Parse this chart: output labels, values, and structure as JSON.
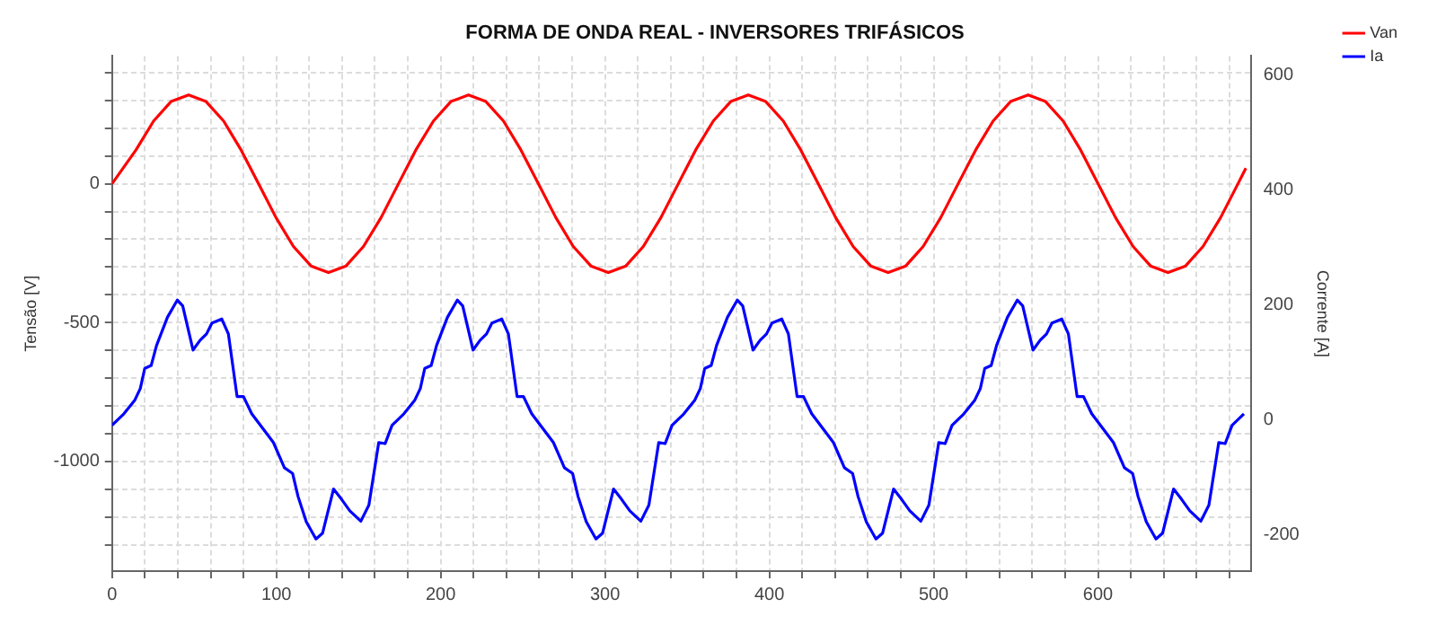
{
  "chart_data": {
    "type": "line",
    "title": "FORMA DE ONDA REAL - INVERSORES TRIFÁSICOS",
    "ylabel": "Tensão [V]",
    "y2label": "Corrente [A]",
    "xlim": [
      0,
      693
    ],
    "xticks": [
      0,
      {
        "value": 20,
        "label": null
      },
      {
        "value": 40,
        "label": null
      },
      {
        "value": 60,
        "label": null
      },
      {
        "value": 80,
        "label": null
      },
      100,
      {
        "value": 120,
        "label": null
      },
      {
        "value": 140,
        "label": null
      },
      {
        "value": 160,
        "label": null
      },
      {
        "value": 180,
        "label": null
      },
      200,
      {
        "value": 220,
        "label": null
      },
      {
        "value": 240,
        "label": null
      },
      {
        "value": 260,
        "label": null
      },
      {
        "value": 280,
        "label": null
      },
      300,
      {
        "value": 320,
        "label": null
      },
      {
        "value": 340,
        "label": null
      },
      {
        "value": 360,
        "label": null
      },
      {
        "value": 380,
        "label": null
      },
      400,
      {
        "value": 420,
        "label": null
      },
      {
        "value": 440,
        "label": null
      },
      {
        "value": 460,
        "label": null
      },
      {
        "value": 480,
        "label": null
      },
      500,
      {
        "value": 520,
        "label": null
      },
      {
        "value": 540,
        "label": null
      },
      {
        "value": 560,
        "label": null
      },
      {
        "value": 580,
        "label": null
      },
      600,
      {
        "value": 620,
        "label": null
      },
      {
        "value": 640,
        "label": null
      },
      {
        "value": 660,
        "label": null
      },
      {
        "value": 680,
        "label": null
      }
    ],
    "ylim": [
      -1395,
      460
    ],
    "yticks": [
      {
        "value": -1300,
        "label": null
      },
      {
        "value": -1200,
        "label": null
      },
      {
        "value": -1100,
        "label": null
      },
      -1000,
      {
        "value": -900,
        "label": null
      },
      {
        "value": -800,
        "label": null
      },
      {
        "value": -700,
        "label": null
      },
      {
        "value": -600,
        "label": null
      },
      -500,
      {
        "value": -400,
        "label": null
      },
      {
        "value": -300,
        "label": null
      },
      {
        "value": -200,
        "label": null
      },
      {
        "value": -100,
        "label": null
      },
      0,
      {
        "value": 100,
        "label": null
      },
      {
        "value": 200,
        "label": null
      },
      {
        "value": 300,
        "label": null
      },
      {
        "value": 400,
        "label": null
      }
    ],
    "y2lim": [
      -264,
      633
    ],
    "y2ticks": [
      -200,
      0,
      200,
      400,
      600
    ],
    "grid": true,
    "legend": "top right",
    "marker": "none",
    "line_style": "solid",
    "series": [
      {
        "name": "Van",
        "color": "#ff0000",
        "type": "line",
        "x": [
          0,
          14.6,
          25.3,
          35.9,
          46.6,
          57.2,
          67.9,
          78.5,
          89.2,
          99.8,
          110.4,
          121.1,
          131.7,
          142.4,
          153,
          163.7,
          174.3,
          184.9,
          195.6,
          206.2,
          216.9,
          227.5,
          238.2,
          248.8,
          259.5,
          270.1,
          280.7,
          291.4,
          302,
          312.7,
          323.3,
          334,
          344.6,
          355.2,
          365.9,
          376.5,
          387.2,
          397.8,
          408.5,
          419.1,
          429.8,
          440.4,
          451,
          461.7,
          472.3,
          483,
          493.6,
          504.3,
          514.9,
          525.6,
          536.2,
          546.8,
          557.5,
          568.1,
          578.8,
          589.4,
          600.1,
          610.7,
          621.4,
          632,
          642.6,
          653.3,
          663.9,
          674.6,
          685.2,
          690
        ],
        "values": [
          0,
          122,
          226,
          296,
          320,
          296,
          226,
          122,
          0,
          -122,
          -226,
          -296,
          -320,
          -296,
          -226,
          -122,
          0,
          122,
          226,
          296,
          320,
          296,
          226,
          122,
          0,
          -122,
          -226,
          -296,
          -320,
          -296,
          -226,
          -122,
          0,
          122,
          226,
          296,
          320,
          296,
          226,
          122,
          0,
          -122,
          -226,
          -296,
          -320,
          -296,
          -226,
          -122,
          0,
          122,
          226,
          296,
          320,
          296,
          226,
          122,
          0,
          -122,
          -226,
          -296,
          -320,
          -296,
          -226,
          -122,
          0,
          56
        ]
      },
      {
        "name": "Ia",
        "color": "#0000ff",
        "type": "line",
        "axis": "y2",
        "x": [
          0,
          7.2,
          13.9,
          17.2,
          19.9,
          23.8,
          27.1,
          33.7,
          39.7,
          43,
          49.3,
          53.6,
          57.5,
          60.8,
          66.8,
          70.8,
          76.1,
          80,
          85,
          91.6,
          98.2,
          104.9,
          109.9,
          113.2,
          118.2,
          124.1,
          128.1,
          134.8,
          139.7,
          144.7,
          151.4,
          156.3,
          162.3,
          166.2,
          170.4,
          177.6,
          184.3,
          187.6,
          190.3,
          194.2,
          197.5,
          204.1,
          210.1,
          213.4,
          219.7,
          224,
          227.9,
          231.2,
          237.2,
          241.2,
          246.5,
          250.4,
          255.4,
          262,
          268.6,
          275.3,
          280.3,
          283.6,
          288.6,
          294.5,
          298.5,
          305.2,
          310.1,
          315.1,
          321.8,
          326.7,
          332.7,
          336.6,
          340.8,
          348,
          354.7,
          358,
          360.7,
          364.6,
          367.9,
          374.5,
          380.5,
          383.8,
          390.1,
          394.4,
          398.3,
          401.6,
          407.6,
          411.6,
          416.9,
          420.8,
          425.8,
          432.4,
          439,
          445.7,
          450.7,
          454,
          459,
          464.9,
          468.9,
          475.6,
          480.5,
          485.5,
          492.2,
          497.1,
          503.1,
          507,
          511.2,
          518.4,
          525.1,
          528.4,
          531.1,
          535,
          538.3,
          544.9,
          550.9,
          554.2,
          560.5,
          564.8,
          568.7,
          572,
          578,
          582,
          587.3,
          591.2,
          596.2,
          602.8,
          609.4,
          616.1,
          621.1,
          624.4,
          629.4,
          635.3,
          639.3,
          646,
          650.9,
          655.9,
          662.6,
          667.5,
          673.5,
          677.4,
          681.6,
          688.8
        ],
        "values": [
          -10,
          10,
          34,
          54,
          89,
          94,
          129,
          178,
          208,
          198,
          121,
          138,
          149,
          168,
          175,
          149,
          40,
          40,
          10,
          -15,
          -40,
          -84,
          -94,
          -134,
          -178,
          -208,
          -198,
          -121,
          -139,
          -159,
          -177,
          -149,
          -40,
          -42,
          -10,
          10,
          34,
          54,
          89,
          94,
          129,
          178,
          208,
          198,
          121,
          138,
          149,
          168,
          175,
          149,
          40,
          40,
          10,
          -15,
          -40,
          -84,
          -94,
          -134,
          -178,
          -208,
          -198,
          -121,
          -139,
          -159,
          -177,
          -149,
          -40,
          -42,
          -10,
          10,
          34,
          54,
          89,
          94,
          129,
          178,
          208,
          198,
          121,
          138,
          149,
          168,
          175,
          149,
          40,
          40,
          10,
          -15,
          -40,
          -84,
          -94,
          -134,
          -178,
          -208,
          -198,
          -121,
          -139,
          -159,
          -177,
          -149,
          -40,
          -42,
          -10,
          10,
          34,
          54,
          89,
          94,
          129,
          178,
          208,
          198,
          121,
          138,
          149,
          168,
          175,
          149,
          40,
          40,
          10,
          -15,
          -40,
          -84,
          -94,
          -134,
          -178,
          -208,
          -198,
          -121,
          -139,
          -159,
          -177,
          -149,
          -40,
          -42,
          -10,
          10
        ]
      }
    ]
  }
}
